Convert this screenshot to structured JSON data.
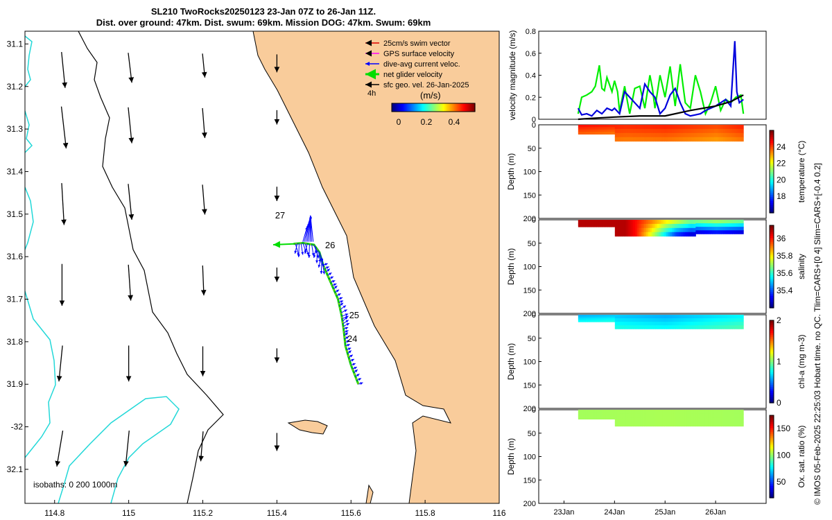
{
  "title_line1": "SL210 TwoRocks20250123 23-Jan 07Z to 26-Jan 11Z.",
  "title_line2": "Dist. over ground: 47km. Dist. swum: 69km. Mission DOG: 47km. Swum: 69km",
  "credit": "© IMOS 05-Feb-2025 22:25:03 Hobart time. no QC. Tlim=CARS+[0 4] Slim=CARS+[-0.4 0.2]",
  "colors": {
    "land": "#f9cc9b",
    "isobath_deep": "#22d8d8",
    "isobath_mid": "#000000",
    "track": "#00cc00"
  },
  "chart_data": [
    {
      "type": "map",
      "title": "Glider track map",
      "xlim": [
        114.72,
        116.0
      ],
      "ylim": [
        -32.18,
        -31.07
      ],
      "xticks": [
        114.8,
        115.0,
        115.2,
        115.4,
        115.6,
        115.8,
        116.0
      ],
      "xtick_labels": [
        "114.8",
        "115",
        "115.2",
        "115.4",
        "115.6",
        "115.8",
        "116"
      ],
      "yticks": [
        -31.1,
        -31.2,
        -31.3,
        -31.4,
        -31.5,
        -31.6,
        -31.7,
        -31.8,
        -31.9,
        -32.0,
        -32.1
      ],
      "ytick_labels": [
        "31.1",
        "31.2",
        "31.3",
        "31.4",
        "31.5",
        "31.6",
        "31.7",
        "31.8",
        "31.9",
        "-32",
        "32.1"
      ],
      "legend": [
        {
          "label": "25cm/s swim vector",
          "color": "#dd0000"
        },
        {
          "label": "GPS surface velocity",
          "color": "#ff00ff"
        },
        {
          "label": "dive-avg current veloc.",
          "color": "#0000ff"
        },
        {
          "label": "net glider velocity",
          "color": "#00dd00"
        },
        {
          "label": "sfc geo. vel. 26-Jan-2025",
          "color": "#000000"
        }
      ],
      "legend_note": "4h",
      "colorbar": {
        "label": "(m/s)",
        "ticks": [
          "0",
          "0.2",
          "0.4"
        ],
        "range": [
          -0.05,
          0.55
        ]
      },
      "isobath_label": "isobaths: 0   200  1000m",
      "day_labels": [
        {
          "text": "27",
          "lon": 115.395,
          "lat": -31.51
        },
        {
          "text": "26",
          "lon": 115.53,
          "lat": -31.58
        },
        {
          "text": "25",
          "lon": 115.595,
          "lat": -31.745
        },
        {
          "text": "24",
          "lon": 115.59,
          "lat": -31.8
        }
      ],
      "track": [
        [
          115.62,
          -31.9
        ],
        [
          115.6,
          -31.855
        ],
        [
          115.585,
          -31.81
        ],
        [
          115.58,
          -31.77
        ],
        [
          115.575,
          -31.74
        ],
        [
          115.565,
          -31.7
        ],
        [
          115.545,
          -31.66
        ],
        [
          115.525,
          -31.62
        ],
        [
          115.515,
          -31.59
        ],
        [
          115.5,
          -31.572
        ],
        [
          115.47,
          -31.568
        ],
        [
          115.445,
          -31.57
        ]
      ],
      "geo_vectors": {
        "lons": [
          114.82,
          115.0,
          115.2,
          115.4
        ],
        "lats": [
          -31.13,
          -31.26,
          -31.44,
          -31.63,
          -31.82,
          -32.02
        ],
        "u": [
          [
            0.03,
            0.03,
            0.02,
            0.0
          ],
          [
            0.04,
            0.03,
            0.02,
            0.0
          ],
          [
            0.02,
            0.03,
            0.02,
            0.0
          ],
          [
            0.0,
            0.02,
            0.01,
            0.0
          ],
          [
            -0.03,
            0.0,
            0.0,
            0.0
          ],
          [
            -0.05,
            -0.03,
            -0.02,
            0.0
          ]
        ],
        "v": [
          [
            -0.3,
            -0.25,
            -0.2,
            -0.15
          ],
          [
            -0.35,
            -0.3,
            -0.25,
            -0.12
          ],
          [
            -0.35,
            -0.3,
            -0.25,
            -0.12
          ],
          [
            -0.35,
            -0.3,
            -0.25,
            -0.12
          ],
          [
            -0.3,
            -0.3,
            -0.25,
            -0.12
          ],
          [
            -0.3,
            -0.3,
            -0.25,
            -0.15
          ]
        ]
      }
    },
    {
      "type": "line",
      "ylabel": "velocity magnitude (m/s)",
      "ylim": [
        0,
        0.8
      ],
      "yticks": [
        0,
        0.2,
        0.4,
        0.6,
        0.8
      ],
      "xlim": [
        22.5,
        27.0
      ],
      "series": [
        {
          "name": "net glider velocity",
          "color": "#00ee00",
          "x": [
            23.28,
            23.35,
            23.45,
            23.55,
            23.62,
            23.7,
            23.75,
            23.8,
            23.85,
            23.95,
            24.0,
            24.06,
            24.1,
            24.2,
            24.3,
            24.4,
            24.5,
            24.6,
            24.65,
            24.7,
            24.75,
            24.8,
            24.9,
            25.0,
            25.1,
            25.2,
            25.3,
            25.4,
            25.5,
            25.6,
            25.7,
            25.8,
            25.9,
            26.0,
            26.1,
            26.2,
            26.3,
            26.4,
            26.5,
            26.55
          ],
          "y": [
            0.05,
            0.2,
            0.22,
            0.25,
            0.3,
            0.49,
            0.28,
            0.26,
            0.38,
            0.25,
            0.35,
            0.25,
            0.07,
            0.3,
            0.05,
            0.28,
            0.3,
            0.1,
            0.25,
            0.4,
            0.28,
            0.1,
            0.4,
            0.2,
            0.48,
            0.12,
            0.5,
            0.15,
            0.1,
            0.4,
            0.25,
            0.05,
            0.15,
            0.3,
            0.08,
            0.18,
            0.15,
            0.2,
            0.22,
            0.05
          ]
        },
        {
          "name": "dive-avg current veloc.",
          "color": "#0000dd",
          "x": [
            23.28,
            23.35,
            23.45,
            23.55,
            23.65,
            23.75,
            23.85,
            23.95,
            24.0,
            24.1,
            24.2,
            24.3,
            24.4,
            24.5,
            24.6,
            24.7,
            24.8,
            24.9,
            25.0,
            25.1,
            25.2,
            25.3,
            25.4,
            25.5,
            25.6,
            25.7,
            25.8,
            25.9,
            26.0,
            26.1,
            26.2,
            26.3,
            26.38,
            26.42,
            26.47,
            26.55
          ],
          "y": [
            0.1,
            0.04,
            0.05,
            0.03,
            0.08,
            0.05,
            0.1,
            0.08,
            0.1,
            0.05,
            0.25,
            0.2,
            0.15,
            0.1,
            0.32,
            0.25,
            0.2,
            0.05,
            0.1,
            0.22,
            0.28,
            0.15,
            0.05,
            0.03,
            0.04,
            0.05,
            0.08,
            0.1,
            0.12,
            0.15,
            0.18,
            0.12,
            0.71,
            0.25,
            0.15,
            0.18
          ]
        },
        {
          "name": "sfc geo. vel.",
          "color": "#000000",
          "x": [
            23.28,
            23.6,
            24.0,
            24.5,
            25.0,
            25.5,
            26.0,
            26.3,
            26.55
          ],
          "y": [
            0.0,
            0.01,
            0.02,
            0.03,
            0.03,
            0.08,
            0.12,
            0.16,
            0.22
          ]
        }
      ]
    },
    {
      "type": "heatmap",
      "ylabel": "Depth (m)",
      "cbar_label": "temperature (°C)",
      "ylim": [
        200,
        0
      ],
      "yticks": [
        0,
        50,
        100,
        150,
        200
      ],
      "clim": [
        16,
        26
      ],
      "cticks": [
        18,
        20,
        22,
        24
      ],
      "x_start": 23.28,
      "x_end": 26.55,
      "depth_segments": [
        [
          23.28,
          24.0,
          20
        ],
        [
          24.0,
          26.55,
          35
        ]
      ],
      "color_stops": [
        [
          23.28,
          24.6
        ],
        [
          24.2,
          24.3
        ],
        [
          25.0,
          24.4
        ],
        [
          26.0,
          24.0
        ],
        [
          26.55,
          24.4
        ]
      ]
    },
    {
      "type": "heatmap",
      "ylabel": "Depth (m)",
      "cbar_label": "salinity",
      "ylim": [
        200,
        0
      ],
      "yticks": [
        0,
        50,
        100,
        150,
        200
      ],
      "clim": [
        35.2,
        36.15
      ],
      "cticks": [
        35.4,
        35.6,
        35.8,
        36
      ],
      "x_start": 23.28,
      "x_end": 26.55,
      "depth_segments": [
        [
          23.28,
          24.0,
          15
        ],
        [
          24.0,
          25.6,
          35
        ],
        [
          25.6,
          26.55,
          30
        ]
      ],
      "color_stops": [
        [
          23.28,
          36.1
        ],
        [
          24.2,
          36.1
        ],
        [
          24.6,
          35.95
        ],
        [
          25.0,
          35.8
        ],
        [
          25.5,
          35.65
        ],
        [
          26.0,
          35.7
        ],
        [
          26.55,
          35.65
        ]
      ]
    },
    {
      "type": "heatmap",
      "ylabel": "Depth (m)",
      "cbar_label": "chl-a (mg m-3)",
      "ylim": [
        200,
        0
      ],
      "yticks": [
        0,
        50,
        100,
        150,
        200
      ],
      "clim": [
        0,
        2
      ],
      "cticks": [
        0,
        1,
        2
      ],
      "x_start": 23.28,
      "x_end": 26.55,
      "depth_segments": [
        [
          23.28,
          24.0,
          15
        ],
        [
          24.0,
          26.55,
          30
        ]
      ],
      "color_stops": [
        [
          23.28,
          0.6
        ],
        [
          24.0,
          0.65
        ],
        [
          25.0,
          0.6
        ],
        [
          26.0,
          0.7
        ],
        [
          26.55,
          0.75
        ]
      ]
    },
    {
      "type": "heatmap",
      "ylabel": "Depth (m)",
      "cbar_label": "Ox. sat. ratio (%)",
      "ylim": [
        200,
        0
      ],
      "yticks": [
        0,
        50,
        100,
        150,
        200
      ],
      "clim": [
        20,
        175
      ],
      "cticks": [
        50,
        100,
        150
      ],
      "x_start": 23.28,
      "x_end": 26.55,
      "depth_segments": [
        [
          23.28,
          24.0,
          20
        ],
        [
          24.0,
          26.55,
          35
        ]
      ],
      "color_stops": [
        [
          23.28,
          103
        ],
        [
          25.0,
          104
        ],
        [
          26.55,
          103
        ]
      ]
    }
  ],
  "time_axis": {
    "ticks": [
      23,
      24,
      25,
      26
    ],
    "labels": [
      "23Jan",
      "24Jan",
      "25Jan",
      "26Jan"
    ]
  }
}
